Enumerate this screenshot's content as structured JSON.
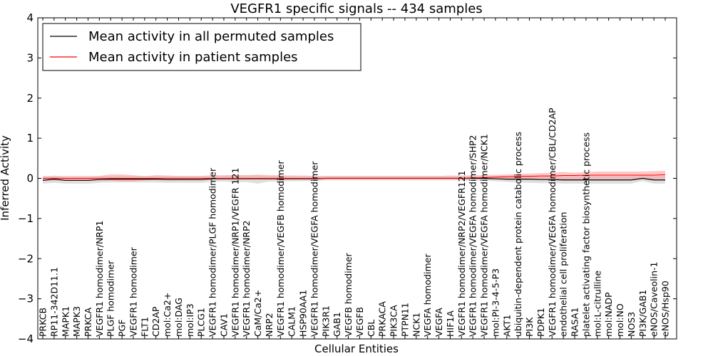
{
  "chart_data": {
    "type": "line",
    "title": "VEGFR1 specific signals -- 434 samples",
    "xlabel": "Cellular Entities",
    "ylabel": "Inferred Activity",
    "ylim": [
      -4,
      4
    ],
    "yticks": [
      -4,
      -3,
      -2,
      -1,
      0,
      1,
      2,
      3,
      4
    ],
    "ytick_labels": [
      "−4",
      "−3",
      "−2",
      "−1",
      "0",
      "1",
      "2",
      "3",
      "4"
    ],
    "grid": false,
    "legend": "top-left",
    "categories": [
      "PRKCB",
      "RP11-342D11.1",
      "MAPK1",
      "MAPK3",
      "PRKCA",
      "VEGFR1 homodimer/NRP1",
      "PLGF homodimer",
      "PGF",
      "VEGFR1 homodimer",
      "FLT1",
      "CD2AP",
      "mol:Ca2+",
      "mol:DAG",
      "mol:IP3",
      "PLCG1",
      "VEGFR1 homodimer/PLGF homodimer",
      "CAV1",
      "VEGFR1 homodimer/NRP1/VEGFR 121",
      "VEGFR1 homodimer/NRP2",
      "CaM/Ca2+",
      "NRP2",
      "VEGFR1 homodimer/VEGFB homodimer",
      "CALM1",
      "HSP90AA1",
      "VEGFR1 homodimer/VEGFA homodimer",
      "PIK3R1",
      "GAB1",
      "VEGFB homodimer",
      "VEGFB",
      "CBL",
      "PRKACA",
      "PIK3CA",
      "PTPN11",
      "NCK1",
      "VEGFA homodimer",
      "VEGFA",
      "HIF1A",
      "VEGFR1 homodimer/NRP2/VEGFR121",
      "VEGFR1 homodimer/VEGFA homodimer/SHP2",
      "VEGFR1 homodimer/VEGFA homodimer/NCK1",
      "mol:PI-3-4-5-P3",
      "AKT1",
      "ubiquitin-dependent protein catabolic process",
      "PI3K",
      "PDPK1",
      "VEGFR1 homodimer/VEGFA homodimer/CBL/CD2AP",
      "endothelial cell proliferation",
      "RASA1",
      "platelet activating factor biosynthetic process",
      "mol:L-citrulline",
      "mol:NADP",
      "mol:NO",
      "NOS3",
      "PI3K/GAB1",
      "eNOS/Caveolin-1",
      "eNOS/Hsp90"
    ],
    "series": [
      {
        "name": "Mean activity in all permuted samples",
        "color": "#000000",
        "values": [
          -0.05,
          -0.02,
          -0.05,
          -0.05,
          -0.05,
          -0.03,
          -0.02,
          -0.02,
          -0.02,
          -0.02,
          -0.02,
          -0.03,
          -0.03,
          -0.03,
          -0.03,
          -0.01,
          -0.01,
          -0.01,
          -0.01,
          -0.01,
          -0.01,
          -0.01,
          -0.01,
          -0.01,
          -0.01,
          0.0,
          0.0,
          0.0,
          0.0,
          0.0,
          0.0,
          0.0,
          0.0,
          0.0,
          0.0,
          0.0,
          0.0,
          0.0,
          0.0,
          0.0,
          -0.01,
          -0.02,
          -0.02,
          -0.02,
          -0.03,
          -0.03,
          -0.04,
          -0.04,
          -0.04,
          -0.04,
          -0.04,
          -0.04,
          -0.04,
          0.0,
          -0.04,
          -0.04
        ],
        "band_low": [
          -0.13,
          -0.11,
          -0.13,
          -0.13,
          -0.13,
          -0.11,
          -0.1,
          -0.1,
          -0.1,
          -0.1,
          -0.1,
          -0.11,
          -0.11,
          -0.11,
          -0.11,
          -0.08,
          -0.08,
          -0.1,
          -0.09,
          -0.13,
          -0.08,
          -0.08,
          -0.07,
          -0.07,
          -0.07,
          -0.05,
          -0.05,
          -0.05,
          -0.05,
          -0.05,
          -0.05,
          -0.05,
          -0.05,
          -0.05,
          -0.05,
          -0.05,
          -0.05,
          -0.05,
          -0.06,
          -0.06,
          -0.07,
          -0.09,
          -0.1,
          -0.11,
          -0.12,
          -0.12,
          -0.13,
          -0.13,
          -0.13,
          -0.13,
          -0.13,
          -0.13,
          -0.13,
          -0.07,
          -0.13,
          -0.13
        ],
        "band_high": [
          0.03,
          0.07,
          0.03,
          0.03,
          0.03,
          0.05,
          0.06,
          0.06,
          0.06,
          0.06,
          0.06,
          0.05,
          0.05,
          0.05,
          0.05,
          0.06,
          0.06,
          0.08,
          0.07,
          0.08,
          0.06,
          0.06,
          0.05,
          0.05,
          0.05,
          0.05,
          0.05,
          0.05,
          0.05,
          0.05,
          0.05,
          0.05,
          0.05,
          0.05,
          0.05,
          0.05,
          0.05,
          0.05,
          0.06,
          0.06,
          0.05,
          0.05,
          0.06,
          0.07,
          0.06,
          0.06,
          0.06,
          0.06,
          0.06,
          0.06,
          0.06,
          0.06,
          0.06,
          0.07,
          0.06,
          0.06
        ]
      },
      {
        "name": "Mean activity in patient samples",
        "color": "#ff0000",
        "values": [
          0.0,
          0.0,
          0.0,
          0.0,
          0.0,
          0.0,
          0.0,
          0.0,
          0.0,
          0.0,
          0.0,
          0.0,
          0.0,
          0.0,
          0.0,
          0.0,
          0.0,
          0.0,
          0.0,
          0.0,
          0.0,
          0.0,
          0.0,
          0.0,
          0.0,
          0.0,
          0.0,
          0.0,
          0.0,
          0.0,
          0.0,
          0.0,
          0.0,
          0.0,
          0.0,
          0.0,
          0.0,
          0.0,
          0.01,
          0.02,
          0.03,
          0.04,
          0.05,
          0.05,
          0.06,
          0.06,
          0.07,
          0.07,
          0.08,
          0.08,
          0.08,
          0.08,
          0.08,
          0.08,
          0.08,
          0.09
        ],
        "band_low": [
          -0.06,
          -0.05,
          -0.06,
          -0.06,
          -0.06,
          -0.05,
          -0.06,
          -0.08,
          -0.08,
          -0.05,
          -0.03,
          -0.03,
          -0.03,
          -0.03,
          -0.03,
          -0.02,
          -0.02,
          -0.02,
          -0.02,
          -0.02,
          -0.02,
          -0.02,
          -0.02,
          -0.02,
          -0.02,
          -0.02,
          -0.02,
          -0.02,
          -0.02,
          -0.02,
          -0.02,
          -0.02,
          -0.02,
          -0.02,
          -0.02,
          -0.02,
          -0.02,
          -0.02,
          -0.02,
          -0.02,
          -0.02,
          -0.02,
          -0.02,
          -0.02,
          -0.02,
          -0.02,
          -0.05,
          -0.04,
          -0.02,
          -0.02,
          -0.02,
          -0.02,
          -0.02,
          0.0,
          -0.02,
          -0.02
        ],
        "band_high": [
          0.06,
          0.05,
          0.06,
          0.06,
          0.06,
          0.06,
          0.1,
          0.1,
          0.08,
          0.05,
          0.08,
          0.07,
          0.06,
          0.06,
          0.06,
          0.08,
          0.08,
          0.08,
          0.08,
          0.09,
          0.08,
          0.08,
          0.07,
          0.07,
          0.06,
          0.06,
          0.06,
          0.06,
          0.06,
          0.06,
          0.06,
          0.06,
          0.06,
          0.06,
          0.06,
          0.06,
          0.07,
          0.07,
          0.07,
          0.08,
          0.09,
          0.1,
          0.11,
          0.12,
          0.13,
          0.14,
          0.16,
          0.14,
          0.16,
          0.17,
          0.17,
          0.17,
          0.17,
          0.17,
          0.18,
          0.19
        ]
      }
    ]
  }
}
